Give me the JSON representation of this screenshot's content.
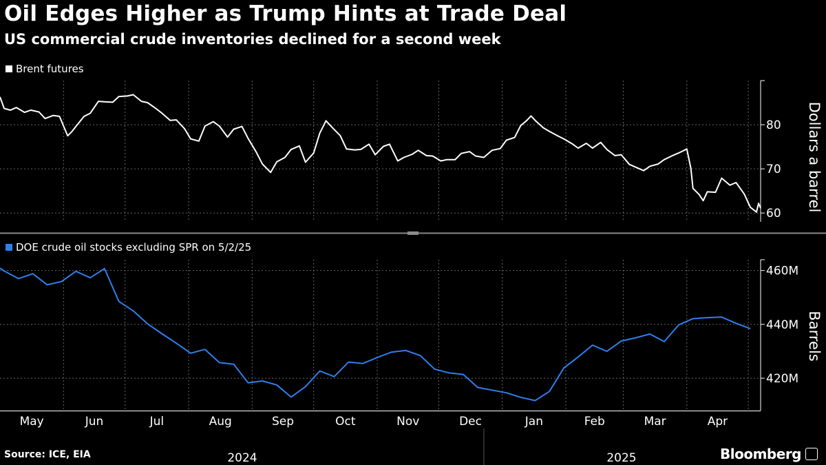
{
  "title": "Oil Edges Higher as Trump Hints at Trade Deal",
  "subtitle": "US commercial crude inventories declined for a second week",
  "source": "Source: ICE, EIA",
  "brand": "Bloomberg",
  "colors": {
    "background": "#000000",
    "brent": "#ffffff",
    "stocks": "#2f80ed",
    "grid": "#666666"
  },
  "chart_data": [
    {
      "type": "line",
      "legend": "Brent futures",
      "ylabel": "Dollars a barrel",
      "ylim": [
        58,
        90
      ],
      "yticks": [
        60,
        70,
        80
      ],
      "x_range": [
        "2024-05-01",
        "2025-05-07"
      ],
      "series": [
        {
          "name": "Brent futures",
          "x": [
            "2024-05-01",
            "2024-05-03",
            "2024-05-06",
            "2024-05-09",
            "2024-05-13",
            "2024-05-16",
            "2024-05-20",
            "2024-05-23",
            "2024-05-27",
            "2024-05-30",
            "2024-06-03",
            "2024-06-05",
            "2024-06-07",
            "2024-06-11",
            "2024-06-14",
            "2024-06-18",
            "2024-06-21",
            "2024-06-25",
            "2024-06-28",
            "2024-07-02",
            "2024-07-05",
            "2024-07-09",
            "2024-07-12",
            "2024-07-16",
            "2024-07-19",
            "2024-07-23",
            "2024-07-26",
            "2024-07-30",
            "2024-08-02",
            "2024-08-06",
            "2024-08-09",
            "2024-08-13",
            "2024-08-16",
            "2024-08-20",
            "2024-08-23",
            "2024-08-27",
            "2024-08-30",
            "2024-09-03",
            "2024-09-06",
            "2024-09-10",
            "2024-09-13",
            "2024-09-17",
            "2024-09-20",
            "2024-09-24",
            "2024-09-27",
            "2024-10-01",
            "2024-10-04",
            "2024-10-07",
            "2024-10-10",
            "2024-10-14",
            "2024-10-17",
            "2024-10-21",
            "2024-10-24",
            "2024-10-28",
            "2024-10-31",
            "2024-11-04",
            "2024-11-07",
            "2024-11-11",
            "2024-11-14",
            "2024-11-18",
            "2024-11-21",
            "2024-11-25",
            "2024-11-28",
            "2024-12-02",
            "2024-12-05",
            "2024-12-09",
            "2024-12-12",
            "2024-12-16",
            "2024-12-19",
            "2024-12-23",
            "2024-12-27",
            "2024-12-31",
            "2025-01-03",
            "2025-01-07",
            "2025-01-10",
            "2025-01-13",
            "2025-01-15",
            "2025-01-17",
            "2025-01-21",
            "2025-01-24",
            "2025-01-28",
            "2025-01-31",
            "2025-02-04",
            "2025-02-07",
            "2025-02-11",
            "2025-02-14",
            "2025-02-18",
            "2025-02-21",
            "2025-02-25",
            "2025-02-28",
            "2025-03-04",
            "2025-03-07",
            "2025-03-11",
            "2025-03-14",
            "2025-03-18",
            "2025-03-21",
            "2025-03-25",
            "2025-03-28",
            "2025-04-01",
            "2025-04-03",
            "2025-04-04",
            "2025-04-07",
            "2025-04-09",
            "2025-04-11",
            "2025-04-15",
            "2025-04-18",
            "2025-04-22",
            "2025-04-25",
            "2025-04-29",
            "2025-05-02",
            "2025-05-05",
            "2025-05-06",
            "2025-05-07"
          ],
          "values": [
            86.3,
            83.7,
            83.3,
            83.9,
            82.8,
            83.3,
            82.9,
            81.4,
            82.1,
            81.9,
            77.5,
            78.4,
            79.6,
            81.9,
            82.6,
            85.3,
            85.2,
            85.1,
            86.4,
            86.5,
            86.8,
            85.3,
            85.0,
            83.7,
            82.6,
            81.0,
            81.1,
            79.1,
            76.8,
            76.3,
            79.7,
            80.7,
            79.7,
            77.2,
            79.0,
            79.6,
            76.9,
            73.8,
            71.1,
            69.2,
            71.6,
            72.6,
            74.4,
            75.2,
            71.5,
            73.6,
            78.1,
            80.9,
            79.4,
            77.5,
            74.5,
            74.3,
            74.4,
            75.6,
            73.2,
            75.1,
            75.6,
            71.8,
            72.6,
            73.3,
            74.2,
            73.0,
            72.9,
            71.8,
            72.1,
            72.1,
            73.5,
            73.9,
            72.9,
            72.6,
            74.2,
            74.6,
            76.5,
            77.1,
            79.8,
            81.0,
            82.0,
            81.0,
            79.3,
            78.5,
            77.5,
            76.8,
            75.7,
            74.7,
            75.8,
            74.7,
            76.0,
            74.4,
            73.0,
            73.2,
            71.0,
            70.4,
            69.6,
            70.6,
            71.1,
            72.1,
            73.0,
            73.6,
            74.5,
            70.1,
            65.6,
            64.2,
            62.8,
            64.8,
            64.7,
            67.9,
            66.3,
            66.9,
            64.3,
            61.3,
            60.2,
            62.2,
            61.1
          ]
        }
      ]
    },
    {
      "type": "line",
      "legend": "DOE crude oil stocks excluding SPR on 5/2/25",
      "ylabel": "Barrels",
      "ylim": [
        408,
        464
      ],
      "yticks": [
        "420M",
        "440M",
        "460M"
      ],
      "ytick_values": [
        420,
        440,
        460
      ],
      "unit": "million barrels",
      "series": [
        {
          "name": "DOE crude oil stocks excluding SPR",
          "x": [
            "2024-04-26",
            "2024-05-03",
            "2024-05-10",
            "2024-05-17",
            "2024-05-24",
            "2024-05-31",
            "2024-06-07",
            "2024-06-14",
            "2024-06-21",
            "2024-06-28",
            "2024-07-05",
            "2024-07-12",
            "2024-07-19",
            "2024-07-26",
            "2024-08-02",
            "2024-08-09",
            "2024-08-16",
            "2024-08-23",
            "2024-08-30",
            "2024-09-06",
            "2024-09-13",
            "2024-09-20",
            "2024-09-27",
            "2024-10-04",
            "2024-10-11",
            "2024-10-18",
            "2024-10-25",
            "2024-11-01",
            "2024-11-08",
            "2024-11-15",
            "2024-11-22",
            "2024-11-29",
            "2024-12-06",
            "2024-12-13",
            "2024-12-20",
            "2024-12-27",
            "2025-01-03",
            "2025-01-10",
            "2025-01-17",
            "2025-01-24",
            "2025-01-31",
            "2025-02-07",
            "2025-02-14",
            "2025-02-21",
            "2025-02-28",
            "2025-03-07",
            "2025-03-14",
            "2025-03-21",
            "2025-03-28",
            "2025-04-04",
            "2025-04-11",
            "2025-04-18",
            "2025-04-25",
            "2025-05-02"
          ],
          "values": [
            460.9,
            459.8,
            457.0,
            458.8,
            454.7,
            455.9,
            459.7,
            457.3,
            460.7,
            448.5,
            445.0,
            440.2,
            436.5,
            433.0,
            429.3,
            430.7,
            425.8,
            425.2,
            418.3,
            419.0,
            417.5,
            413.0,
            416.9,
            422.7,
            420.6,
            426.0,
            425.5,
            427.7,
            429.7,
            430.3,
            428.4,
            423.4,
            422.0,
            421.4,
            416.6,
            415.6,
            414.6,
            412.9,
            411.7,
            415.1,
            423.8,
            427.9,
            432.3,
            430.0,
            433.8,
            435.0,
            436.4,
            433.6,
            439.8,
            442.1,
            442.5,
            442.7,
            440.4,
            438.4
          ]
        }
      ]
    }
  ],
  "x_axis": {
    "months": [
      "May",
      "Jun",
      "Jul",
      "Aug",
      "Sep",
      "Oct",
      "Nov",
      "Dec",
      "Jan",
      "Feb",
      "Mar",
      "Apr"
    ],
    "years": [
      "2024",
      "2025"
    ]
  }
}
